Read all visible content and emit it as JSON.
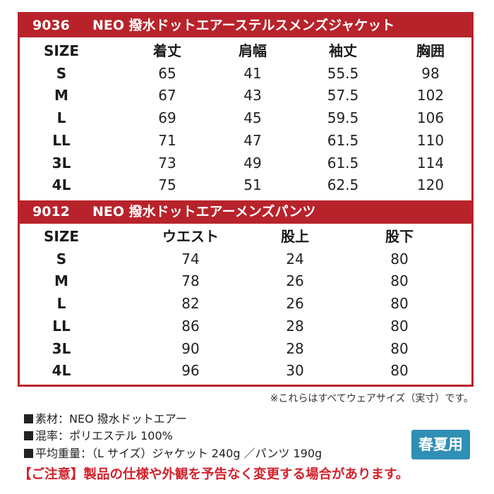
{
  "jacket": {
    "code": "9036",
    "name": "NEO 撥水ドットエアーステルスメンズジャケット",
    "headers": [
      "SIZE",
      "着丈",
      "肩幅",
      "袖丈",
      "胸囲"
    ],
    "rows": [
      [
        "S",
        "65",
        "41",
        "55.5",
        "98"
      ],
      [
        "M",
        "67",
        "43",
        "57.5",
        "102"
      ],
      [
        "L",
        "69",
        "45",
        "59.5",
        "106"
      ],
      [
        "LL",
        "71",
        "47",
        "61.5",
        "110"
      ],
      [
        "3L",
        "73",
        "49",
        "61.5",
        "114"
      ],
      [
        "4L",
        "75",
        "51",
        "62.5",
        "120"
      ]
    ]
  },
  "pants": {
    "code": "9012",
    "name": "NEO 撥水ドットエアーメンズパンツ",
    "headers": [
      "SIZE",
      "ウエスト",
      "股上",
      "股下"
    ],
    "rows": [
      [
        "S",
        "74",
        "24",
        "80"
      ],
      [
        "M",
        "78",
        "26",
        "80"
      ],
      [
        "L",
        "82",
        "26",
        "80"
      ],
      [
        "LL",
        "86",
        "28",
        "80"
      ],
      [
        "3L",
        "90",
        "28",
        "80"
      ],
      [
        "4L",
        "96",
        "30",
        "80"
      ]
    ]
  },
  "size_note": "※これらはすべてウェアサイズ（実寸）です。",
  "specs": [
    "素材：NEO 撥水ドットエアー",
    "混率：ポリエステル 100%",
    "平均重量：（L サイズ）ジャケット 240g ／パンツ 190g"
  ],
  "season_badge": "春夏用",
  "warning": "【ご注意】製品の仕様や外観を予告なく変更する場合があります。",
  "colors": {
    "header_red": "#b8232b",
    "badge_blue": "#2f8fb4",
    "warning_red": "#d2222d"
  }
}
